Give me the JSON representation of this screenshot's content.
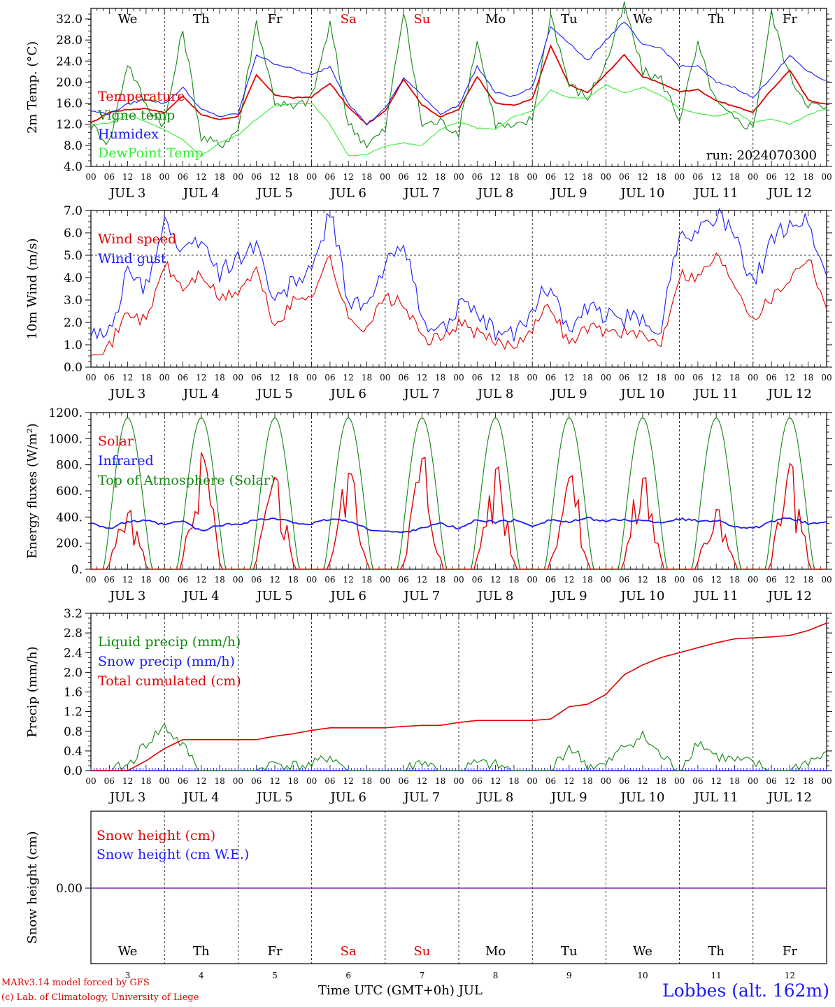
{
  "chart_data": [
    {
      "type": "line",
      "panel": "temperature",
      "ylabel": "2m Temp. (°C)",
      "ylim": [
        4.0,
        34.0
      ],
      "yticks": [
        "4.0",
        "8.0",
        "12.0",
        "16.0",
        "20.0",
        "24.0",
        "28.0",
        "32.0"
      ],
      "run_label": "run: 2024070300",
      "x_hours": [
        0,
        6,
        12,
        18,
        24,
        30,
        36,
        42,
        48,
        54,
        60,
        66,
        72,
        78,
        84,
        90,
        96,
        102,
        108,
        114,
        120,
        126,
        132,
        138,
        144,
        150,
        156,
        162,
        168,
        174,
        180,
        186,
        192,
        198,
        204,
        210,
        216,
        222,
        228,
        234,
        240
      ],
      "series": [
        {
          "name": "Temperature",
          "color": "#e00000",
          "values": [
            12.2,
            14.3,
            14.8,
            15.0,
            14.2,
            17.4,
            13.8,
            12.9,
            13.5,
            21.3,
            17.6,
            17.0,
            17.2,
            19.8,
            15.2,
            12.0,
            14.5,
            20.6,
            15.7,
            13.4,
            14.8,
            21.1,
            16.0,
            15.6,
            16.8,
            26.9,
            19.5,
            18.0,
            21.5,
            25.2,
            21.0,
            19.8,
            18.2,
            18.6,
            16.5,
            15.4,
            14.3,
            18.5,
            22.3,
            16.6,
            15.8
          ]
        },
        {
          "name": "Vigne temp",
          "color": "#118811",
          "values": [
            11.8,
            8.5,
            23.8,
            15.5,
            12.0,
            30.0,
            9.5,
            8.0,
            11.0,
            31.5,
            16.5,
            15.0,
            17.0,
            31.0,
            12.0,
            8.3,
            10.8,
            33.5,
            12.0,
            12.5,
            10.5,
            28.0,
            12.0,
            11.2,
            13.0,
            33.0,
            19.5,
            17.0,
            23.5,
            34.5,
            22.0,
            20.5,
            13.0,
            27.0,
            16.0,
            12.8,
            11.5,
            33.0,
            21.0,
            16.0,
            14.8
          ]
        },
        {
          "name": "Humidex",
          "color": "#1a1aff",
          "values": [
            14.5,
            14.0,
            15.8,
            16.8,
            15.9,
            19.0,
            14.8,
            13.5,
            14.0,
            25.2,
            23.5,
            22.5,
            21.3,
            23.0,
            16.0,
            12.0,
            15.0,
            20.8,
            17.5,
            14.0,
            15.6,
            23.0,
            18.0,
            17.3,
            19.0,
            30.5,
            27.5,
            24.0,
            28.0,
            31.5,
            27.0,
            26.5,
            23.0,
            23.0,
            20.0,
            19.0,
            17.0,
            21.0,
            25.0,
            22.0,
            20.2
          ]
        },
        {
          "name": "DewPoint Temp",
          "color": "#33ee33",
          "values": [
            12.0,
            12.2,
            13.8,
            12.5,
            11.0,
            9.0,
            6.0,
            8.5,
            10.0,
            13.0,
            15.5,
            16.0,
            16.0,
            12.0,
            6.0,
            6.3,
            7.8,
            8.5,
            8.0,
            11.0,
            12.5,
            11.3,
            11.0,
            13.5,
            14.5,
            18.5,
            17.0,
            17.0,
            19.5,
            18.0,
            19.0,
            17.5,
            15.0,
            14.0,
            13.5,
            14.5,
            12.3,
            13.0,
            12.0,
            13.8,
            15.0
          ]
        }
      ]
    },
    {
      "type": "line",
      "panel": "wind",
      "ylabel": "10m Wind (m/s)",
      "ylim": [
        0.0,
        7.0
      ],
      "yticks": [
        "0.0",
        "1.0",
        "2.0",
        "3.0",
        "4.0",
        "5.0",
        "6.0",
        "7.0"
      ],
      "x_hours": [
        0,
        6,
        12,
        18,
        24,
        30,
        36,
        42,
        48,
        54,
        60,
        66,
        72,
        78,
        84,
        90,
        96,
        102,
        108,
        114,
        120,
        126,
        132,
        138,
        144,
        150,
        156,
        162,
        168,
        174,
        180,
        186,
        192,
        198,
        204,
        210,
        216,
        222,
        228,
        234,
        240
      ],
      "series": [
        {
          "name": "Wind speed",
          "color": "#e00000",
          "values": [
            0.8,
            0.9,
            2.5,
            2.0,
            4.6,
            3.5,
            4.2,
            3.0,
            3.4,
            4.3,
            1.8,
            2.9,
            3.3,
            4.9,
            2.1,
            1.8,
            3.1,
            2.8,
            1.3,
            1.2,
            2.0,
            1.5,
            1.1,
            1.0,
            1.8,
            2.8,
            1.0,
            1.8,
            1.6,
            1.6,
            1.3,
            1.1,
            4.2,
            4.0,
            5.0,
            3.8,
            2.2,
            3.1,
            4.0,
            5.0,
            2.7
          ]
        },
        {
          "name": "Wind gust",
          "color": "#1a1aff",
          "values": [
            1.3,
            1.6,
            4.2,
            3.5,
            6.7,
            5.0,
            5.8,
            4.1,
            4.9,
            5.6,
            2.8,
            3.9,
            4.2,
            7.0,
            3.0,
            2.6,
            4.5,
            5.8,
            2.0,
            1.6,
            2.8,
            2.2,
            1.6,
            1.4,
            2.6,
            3.8,
            1.5,
            2.6,
            2.3,
            2.2,
            2.0,
            1.8,
            6.1,
            6.0,
            6.9,
            5.8,
            3.6,
            5.6,
            6.5,
            6.5,
            4.0
          ]
        }
      ]
    },
    {
      "type": "line",
      "panel": "energy",
      "ylabel": "Energy fluxes (W/m²)",
      "ylim": [
        0,
        1200
      ],
      "yticks": [
        "0.",
        "200.",
        "400.",
        "600.",
        "800.",
        "1000.",
        "1200."
      ],
      "series": [
        {
          "name": "Solar",
          "color": "#e00000",
          "peaks": [
            490,
            910,
            740,
            780,
            880,
            870,
            820,
            770,
            520,
            850
          ]
        },
        {
          "name": "Infrared",
          "color": "#1a1aff",
          "values": [
            360,
            310,
            365,
            370,
            340,
            370,
            290,
            340,
            345,
            380,
            385,
            360,
            345,
            385,
            370,
            310,
            290,
            280,
            320,
            350,
            310,
            380,
            360,
            375,
            335,
            380,
            360,
            390,
            370,
            380,
            370,
            360,
            385,
            370,
            375,
            330,
            310,
            360,
            395,
            350,
            360
          ]
        },
        {
          "name": "Top of Atmosphere (Solar)",
          "color": "#118811",
          "peak": 1160
        }
      ]
    },
    {
      "type": "line",
      "panel": "precip",
      "ylabel": "Precip (mm/h)",
      "ylim": [
        0.0,
        3.2
      ],
      "yticks": [
        "0.0",
        "0.4",
        "0.8",
        "1.2",
        "1.6",
        "2.0",
        "2.4",
        "2.8",
        "3.2"
      ],
      "x_hours": [
        0,
        6,
        12,
        18,
        24,
        30,
        36,
        42,
        48,
        54,
        60,
        66,
        72,
        78,
        84,
        90,
        96,
        102,
        108,
        114,
        120,
        126,
        132,
        138,
        144,
        150,
        156,
        162,
        168,
        174,
        180,
        186,
        192,
        198,
        204,
        210,
        216,
        222,
        228,
        234,
        240
      ],
      "series": [
        {
          "name": "Liquid precip (mm/h)",
          "color": "#118811",
          "values": [
            0,
            0,
            0.1,
            0.55,
            0.9,
            0.5,
            0,
            0,
            0,
            0,
            0.15,
            0.1,
            0.1,
            0.3,
            0,
            0,
            0,
            0,
            0.2,
            0,
            0,
            0.15,
            0.1,
            0,
            0,
            0,
            0.5,
            0.1,
            0.1,
            0.5,
            0.7,
            0.3,
            0,
            0.6,
            0.3,
            0.2,
            0.15,
            0,
            0,
            0.2,
            0.3
          ]
        },
        {
          "name": "Snow precip (mm/h)",
          "color": "#1a1aff",
          "values": [
            0,
            0,
            0,
            0,
            0,
            0,
            0,
            0,
            0,
            0,
            0,
            0,
            0,
            0,
            0,
            0,
            0,
            0,
            0,
            0,
            0,
            0,
            0,
            0,
            0,
            0,
            0,
            0,
            0,
            0,
            0,
            0,
            0,
            0,
            0,
            0,
            0,
            0,
            0,
            0,
            0
          ]
        },
        {
          "name": "Total cumulated (cm)",
          "color": "#e00000",
          "values": [
            0,
            0,
            0,
            0.2,
            0.45,
            0.63,
            0.63,
            0.63,
            0.63,
            0.63,
            0.7,
            0.75,
            0.82,
            0.87,
            0.87,
            0.87,
            0.87,
            0.9,
            0.92,
            0.92,
            0.98,
            1.02,
            1.02,
            1.02,
            1.02,
            1.05,
            1.3,
            1.35,
            1.55,
            1.95,
            2.15,
            2.3,
            2.4,
            2.5,
            2.6,
            2.68,
            2.7,
            2.72,
            2.75,
            2.85,
            3.0
          ]
        }
      ]
    },
    {
      "type": "line",
      "panel": "snow",
      "ylabel": "Snow height (cm)",
      "ytick": "0.00",
      "series": [
        {
          "name": "Snow height (cm)",
          "color": "#e00000",
          "values": [
            0,
            0
          ]
        },
        {
          "name": "Snow height (cm W.E.)",
          "color": "#1a1aff",
          "values": [
            0,
            0
          ]
        }
      ]
    }
  ],
  "days": [
    {
      "weekday": "We",
      "date": "3",
      "weekend": false
    },
    {
      "weekday": "Th",
      "date": "4",
      "weekend": false
    },
    {
      "weekday": "Fr",
      "date": "5",
      "weekend": false
    },
    {
      "weekday": "Sa",
      "date": "6",
      "weekend": true
    },
    {
      "weekday": "Su",
      "date": "7",
      "weekend": true
    },
    {
      "weekday": "Mo",
      "date": "8",
      "weekend": false
    },
    {
      "weekday": "Tu",
      "date": "9",
      "weekend": false
    },
    {
      "weekday": "We",
      "date": "10",
      "weekend": false
    },
    {
      "weekday": "Th",
      "date": "11",
      "weekend": false
    },
    {
      "weekday": "Fr",
      "date": "12",
      "weekend": false
    }
  ],
  "month_label": "JUL",
  "hour_labels": [
    "00",
    "06",
    "12",
    "18"
  ],
  "footer": {
    "credit_line1": "MARv3.14 model forced by GFS",
    "credit_line2": "(c) Lab. of Climatology, University of Liege",
    "x_title": "Time UTC (GMT+0h) JUL",
    "station": "Lobbes (alt. 162m)"
  },
  "colors": {
    "red": "#e00000",
    "blue": "#1a1aff",
    "green": "#118811",
    "lightgreen": "#33ee33",
    "weekend": "#e00000"
  }
}
